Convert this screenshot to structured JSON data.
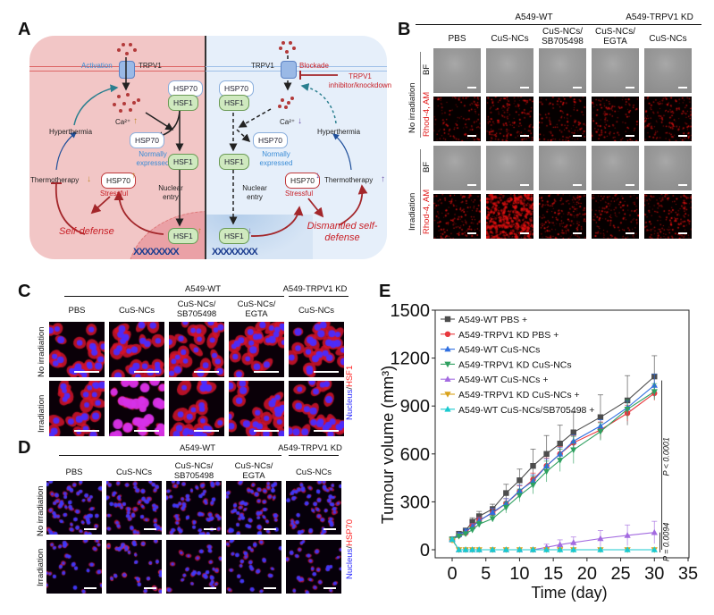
{
  "panels": {
    "A": {
      "label": "A",
      "left": {
        "activation": "Activation",
        "trpv1": "TRPV1",
        "hsp70_top": "HSP70",
        "hsf1_top": "HSF1",
        "ca": "Ca²⁺",
        "hsp70_mid": "HSP70",
        "normally_expressed": "Normally expressed",
        "hsf1_mid": "HSF1",
        "hyperthermia": "Hyperthermia",
        "thermotherapy": "Thermotherapy",
        "hsp70_stress": "HSP70",
        "stressful": "Stressful",
        "nuclear_entry": "Nuclear entry",
        "self_defense": "Self-defense",
        "hsf1_nuc": "HSF1",
        "arrow_up": "↑",
        "arrow_down": "↓"
      },
      "right": {
        "trpv1": "TRPV1",
        "blockade": "Blockade",
        "inhibitor": "TRPV1 inhibitor/knockdown",
        "hsp70_top": "HSP70",
        "hsf1_top": "HSF1",
        "ca": "Ca²⁺",
        "hsp70_mid": "HSP70",
        "normally_expressed": "Normally expressed",
        "hsf1_mid": "HSF1",
        "hyperthermia": "Hyperthermia",
        "thermotherapy": "Thermotherapy",
        "hsp70_stress": "HSP70",
        "stressful": "Stressful",
        "nuclear_entry": "Nuclear entry",
        "dismantled": "Dismantled self-defense",
        "hsf1_nuc": "HSF1",
        "arrow_up": "↑",
        "arrow_down": "↓"
      },
      "dna": "XXXXXXXX"
    },
    "B": {
      "label": "B",
      "group_wt": "A549-WT",
      "group_kd": "A549-TRPV1 KD",
      "columns": [
        "PBS",
        "CuS-NCs",
        "CuS-NCs/ SB705498",
        "CuS-NCs/ EGTA",
        "CuS-NCs"
      ],
      "conditions": [
        "No irradiation",
        "Irradiation"
      ],
      "channels": [
        "BF",
        "Rhod-4, AM"
      ],
      "rhod_intensity": [
        [
          0.15,
          0.25,
          0.15,
          0.15,
          0.25
        ],
        [
          0.25,
          0.9,
          0.3,
          0.2,
          0.3
        ]
      ]
    },
    "C": {
      "label": "C",
      "group_wt": "A549-WT",
      "group_kd": "A549-TRPV1 KD",
      "columns": [
        "PBS",
        "CuS-NCs",
        "CuS-NCs/ SB705498",
        "CuS-NCs/ EGTA",
        "CuS-NCs"
      ],
      "conditions": [
        "No irradiation",
        "Irradiation"
      ],
      "stain_nucleus": "Nucleus",
      "stain_sep": "/",
      "stain_target": "HSF1"
    },
    "D": {
      "label": "D",
      "group_wt": "A549-WT",
      "group_kd": "A549-TRPV1 KD",
      "columns": [
        "PBS",
        "CuS-NCs",
        "CuS-NCs/ SB705498",
        "CuS-NCs/ EGTA",
        "CuS-NCs"
      ],
      "conditions": [
        "No irradiation",
        "Irradiation"
      ],
      "stain_nucleus": "Nucleus",
      "stain_sep": "/",
      "stain_target": "HSP70"
    },
    "E": {
      "label": "E"
    }
  },
  "colors": {
    "red_text": "#c81f26",
    "blue_text": "#3a8cd6",
    "nucleus_blue": "#2a2aff",
    "stain_red": "#ff2020"
  },
  "chart_data": {
    "type": "line",
    "title": "",
    "xlabel": "Time (day)",
    "ylabel": "Tumour volume (mm³)",
    "xlim": [
      -2.5,
      35
    ],
    "ylim": [
      -50,
      1500
    ],
    "xticks": [
      0,
      5,
      10,
      15,
      20,
      25,
      30,
      35
    ],
    "yticks": [
      0,
      300,
      600,
      900,
      1200,
      1500
    ],
    "grid": false,
    "legend_position": "top-left",
    "x": [
      0,
      1,
      2,
      3,
      4,
      6,
      8,
      10,
      12,
      14,
      16,
      18,
      22,
      26,
      30
    ],
    "series": [
      {
        "name": "A549-WT PBS +",
        "color": "#4d4d4d",
        "marker": "square",
        "values": [
          65,
          100,
          120,
          175,
          210,
          255,
          355,
          435,
          525,
          600,
          665,
          735,
          830,
          935,
          1085
        ],
        "errors": [
          10,
          12,
          15,
          25,
          30,
          30,
          55,
          70,
          105,
          115,
          115,
          125,
          140,
          155,
          130
        ]
      },
      {
        "name": "A549-TRPV1 KD PBS +",
        "color": "#e8383d",
        "marker": "circle",
        "values": [
          65,
          90,
          105,
          150,
          185,
          230,
          290,
          365,
          440,
          525,
          600,
          670,
          750,
          855,
          980
        ],
        "errors": [
          8,
          10,
          12,
          15,
          20,
          25,
          30,
          35,
          40,
          50,
          45,
          45,
          50,
          50,
          45
        ]
      },
      {
        "name": "A549-WT CuS-NCs",
        "color": "#2f6fe0",
        "marker": "triangle-up",
        "values": [
          65,
          95,
          115,
          145,
          180,
          235,
          290,
          370,
          430,
          525,
          600,
          680,
          775,
          890,
          1030
        ],
        "errors": [
          8,
          12,
          15,
          18,
          22,
          25,
          30,
          35,
          40,
          45,
          40,
          40,
          40,
          40,
          70
        ]
      },
      {
        "name": "A549-TRPV1 KD CuS-NCs",
        "color": "#2fa060",
        "marker": "triangle-down",
        "values": [
          65,
          85,
          100,
          125,
          160,
          195,
          265,
          340,
          405,
          490,
          560,
          625,
          740,
          880,
          990
        ],
        "errors": [
          8,
          10,
          12,
          15,
          18,
          20,
          35,
          40,
          55,
          65,
          70,
          85,
          55,
          60,
          50
        ]
      },
      {
        "name": "A549-WT CuS-NCs +",
        "color": "#a36ae0",
        "marker": "triangle-up",
        "values": [
          65,
          0,
          0,
          0,
          0,
          0,
          0,
          0,
          0,
          15,
          32,
          45,
          70,
          90,
          108
        ],
        "errors": [
          8,
          0,
          0,
          0,
          0,
          0,
          0,
          0,
          0,
          20,
          30,
          35,
          50,
          65,
          70
        ]
      },
      {
        "name": "A549-TRPV1 KD CuS-NCs +",
        "color": "#d9a21b",
        "marker": "triangle-down",
        "values": [
          60,
          0,
          0,
          0,
          0,
          0,
          0,
          0,
          0,
          0,
          0,
          0,
          0,
          0,
          0
        ],
        "errors": [
          8,
          0,
          0,
          0,
          0,
          0,
          0,
          0,
          0,
          0,
          0,
          0,
          0,
          0,
          0
        ]
      },
      {
        "name": "A549-WT CuS-NCs/SB705498 +",
        "color": "#19c9cf",
        "marker": "triangle-up",
        "values": [
          65,
          0,
          0,
          0,
          0,
          0,
          0,
          0,
          0,
          0,
          0,
          0,
          0,
          0,
          0
        ],
        "errors": [
          8,
          0,
          0,
          0,
          0,
          0,
          0,
          0,
          0,
          0,
          0,
          0,
          0,
          0,
          0
        ]
      }
    ],
    "annotations": [
      {
        "text": "P < 0.0001",
        "from_value": 0,
        "to_value": 1060
      },
      {
        "text": "P = 0.0094",
        "from_value": 0,
        "to_value": 108
      }
    ]
  }
}
